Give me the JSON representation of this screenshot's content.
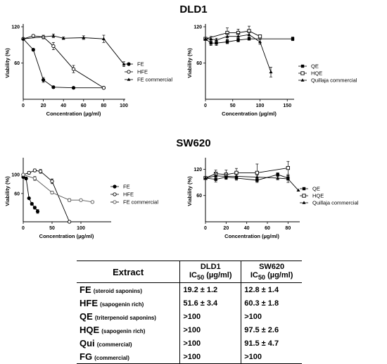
{
  "sections": [
    {
      "title": "DLD1"
    },
    {
      "title": "SW620"
    }
  ],
  "chart_data": [
    {
      "type": "line",
      "id": "dld1_fe",
      "xlabel": "Concentration  (µg/ml)",
      "ylabel": "Viability (%)",
      "xlim": [
        0,
        100
      ],
      "ylim": [
        0,
        120
      ],
      "xticks": [
        0,
        20,
        40,
        60,
        80,
        100
      ],
      "yticks": [
        60,
        120
      ],
      "legend": "right",
      "series": [
        {
          "name": "FE",
          "marker": "filled-circle",
          "x": [
            0,
            10,
            20,
            30,
            50,
            80
          ],
          "y": [
            100,
            82,
            32,
            20,
            19,
            19
          ],
          "err": [
            0,
            2,
            4,
            2,
            1,
            1
          ]
        },
        {
          "name": "HFE",
          "marker": "open-circle",
          "x": [
            0,
            10,
            20,
            30,
            50,
            80
          ],
          "y": [
            100,
            105,
            103,
            88,
            50,
            19
          ],
          "err": [
            0,
            2,
            3,
            6,
            6,
            2
          ]
        },
        {
          "name": "FE commercial",
          "marker": "triangle",
          "x": [
            0,
            30,
            40,
            60,
            80,
            100
          ],
          "y": [
            100,
            105,
            101,
            102,
            100,
            58
          ],
          "err": [
            0,
            3,
            2,
            3,
            6,
            4
          ]
        }
      ]
    },
    {
      "type": "line",
      "id": "dld1_qe",
      "xlabel": "Concentration  (µg/ml)",
      "ylabel": "Viability (%)",
      "xlim": [
        0,
        160
      ],
      "ylim": [
        0,
        120
      ],
      "xticks": [
        0,
        50,
        100,
        150
      ],
      "yticks": [
        60,
        120
      ],
      "legend": "right",
      "series": [
        {
          "name": "QE",
          "marker": "filled-square",
          "x": [
            0,
            10,
            20,
            40,
            60,
            80,
            160
          ],
          "y": [
            100,
            93,
            93,
            95,
            98,
            100,
            100
          ],
          "err": [
            0,
            4,
            4,
            3,
            3,
            2,
            3
          ]
        },
        {
          "name": "HQE",
          "marker": "open-square",
          "x": [
            0,
            40,
            60,
            80,
            100
          ],
          "y": [
            100,
            110,
            110,
            113,
            104
          ],
          "err": [
            0,
            8,
            6,
            8,
            0
          ]
        },
        {
          "name": "Quillaja commercial",
          "marker": "triangle",
          "x": [
            0,
            10,
            20,
            40,
            60,
            80,
            100,
            120
          ],
          "y": [
            100,
            100,
            98,
            104,
            104,
            107,
            95,
            45
          ],
          "err": [
            0,
            4,
            3,
            5,
            5,
            4,
            4,
            8
          ]
        }
      ]
    },
    {
      "type": "line",
      "id": "sw620_fe",
      "xlabel": "Concentration  (µg/ml)",
      "ylabel": "Viability (%)",
      "xlim": [
        0,
        150
      ],
      "ylim": [
        0,
        130
      ],
      "xticks": [
        0,
        50,
        100
      ],
      "yticks": [
        60,
        100
      ],
      "legend": "right",
      "series": [
        {
          "name": "FE",
          "marker": "filled-circle",
          "x": [
            0,
            5,
            10,
            15,
            20,
            25
          ],
          "y": [
            95,
            92,
            50,
            38,
            30,
            22
          ],
          "err": [
            0,
            3,
            2,
            3,
            3,
            4
          ]
        },
        {
          "name": "HFE",
          "marker": "open-circle",
          "x": [
            0,
            10,
            20,
            30,
            50,
            80
          ],
          "y": [
            100,
            104,
            109,
            107,
            86,
            0
          ],
          "err": [
            0,
            3,
            3,
            4,
            5,
            2
          ]
        },
        {
          "name": "FE commercial",
          "marker": "open-circle-gray",
          "x": [
            0,
            20,
            50,
            80,
            100,
            120
          ],
          "y": [
            100,
            92,
            62,
            46,
            46,
            42
          ],
          "err": [
            0,
            4,
            3,
            3,
            2,
            2
          ]
        }
      ]
    },
    {
      "type": "line",
      "id": "sw620_qe",
      "xlabel": "Concentration  (µg/ml)",
      "ylabel": "Viability (%)",
      "xlim": [
        0,
        90
      ],
      "ylim": [
        0,
        140
      ],
      "xticks": [
        0,
        20,
        40,
        60,
        80
      ],
      "yticks": [
        60,
        120
      ],
      "legend": "right",
      "series": [
        {
          "name": "QE",
          "marker": "filled-square",
          "x": [
            0,
            10,
            20,
            30,
            50,
            70,
            80
          ],
          "y": [
            100,
            97,
            102,
            100,
            95,
            108,
            100
          ],
          "err": [
            0,
            6,
            5,
            5,
            5,
            4,
            5
          ]
        },
        {
          "name": "HQE",
          "marker": "open-square",
          "x": [
            0,
            10,
            20,
            30,
            50,
            80
          ],
          "y": [
            100,
            110,
            108,
            112,
            112,
            123
          ],
          "err": [
            0,
            8,
            10,
            10,
            20,
            15
          ]
        },
        {
          "name": "Quillaja commercial",
          "marker": "triangle",
          "x": [
            0,
            10,
            20,
            30,
            50,
            70,
            80,
            90
          ],
          "y": [
            100,
            105,
            104,
            104,
            102,
            100,
            98,
            72
          ],
          "err": [
            0,
            6,
            5,
            5,
            4,
            4,
            8,
            0
          ]
        }
      ]
    },
    {
      "type": "table",
      "id": "ic50_table",
      "header": {
        "extract": "Extract",
        "dld1": "DLD1",
        "sw620": "SW620",
        "ic50": "IC",
        "ic50_sub": "50",
        "ic50_unit": " (µg/ml)"
      },
      "rows": [
        {
          "name": "FE",
          "note": "(steroid saponins)",
          "dld1": "19.2 ± 1.2",
          "sw620": "12.8 ± 1.4"
        },
        {
          "name": "HFE",
          "note": "(sapogenin rich)",
          "dld1": "51.6 ± 3.4",
          "sw620": "60.3 ± 1.8"
        },
        {
          "name": "QE",
          "note": "(triterpenoid saponins)",
          "dld1": ">100",
          "sw620": ">100"
        },
        {
          "name": "HQE",
          "note": "(sapogenin rich)",
          "dld1": ">100",
          "sw620": "97.5 ± 2.6"
        },
        {
          "name": "Qui",
          "note": "(commercial)",
          "dld1": ">100",
          "sw620": "91.5 ± 4.7"
        },
        {
          "name": "FG",
          "note": "(commercial)",
          "dld1": ">100",
          "sw620": ">100"
        }
      ]
    }
  ]
}
